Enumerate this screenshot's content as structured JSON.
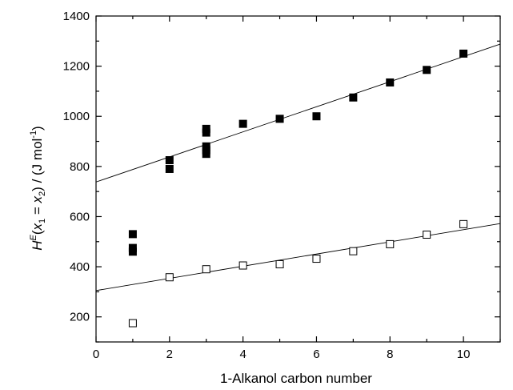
{
  "chart_data": {
    "type": "scatter",
    "title": "",
    "xlabel": "1-Alkanol carbon number",
    "ylabel": {
      "H": "H",
      "sup_E": "E",
      "open_paren": "(",
      "x": "x",
      "sub_1": "1",
      "eq": " = ",
      "x2": "x",
      "sub_2": "2",
      "close": ") / (J mol",
      "sup_m1": "-1",
      "end": ")"
    },
    "xlim": [
      0,
      11
    ],
    "ylim": [
      100,
      1400
    ],
    "xticks": [
      "0",
      "2",
      "4",
      "6",
      "8",
      "10"
    ],
    "xtick_values": [
      0,
      2,
      4,
      6,
      8,
      10
    ],
    "yticks": [
      "200",
      "400",
      "600",
      "800",
      "1000",
      "1200",
      "1400"
    ],
    "ytick_values": [
      200,
      400,
      600,
      800,
      1000,
      1200,
      1400
    ],
    "grid": false,
    "series": [
      {
        "marker": "filled-square",
        "x": [
          1,
          1,
          1,
          2,
          2,
          3,
          3,
          3,
          3,
          3,
          4,
          5,
          6,
          7,
          8,
          9,
          10
        ],
        "y": [
          530,
          475,
          460,
          825,
          790,
          950,
          935,
          880,
          865,
          850,
          970,
          990,
          1000,
          1075,
          1135,
          1185,
          1250
        ]
      },
      {
        "marker": "open-square",
        "x": [
          1,
          2,
          3,
          4,
          5,
          6,
          7,
          8,
          9,
          10
        ],
        "y": [
          175,
          358,
          390,
          405,
          410,
          432,
          462,
          490,
          528,
          570
        ]
      }
    ],
    "fit_lines": [
      {
        "x": [
          0,
          11
        ],
        "y": [
          738,
          1288
        ]
      },
      {
        "x": [
          0,
          11
        ],
        "y": [
          305,
          572
        ]
      }
    ]
  }
}
